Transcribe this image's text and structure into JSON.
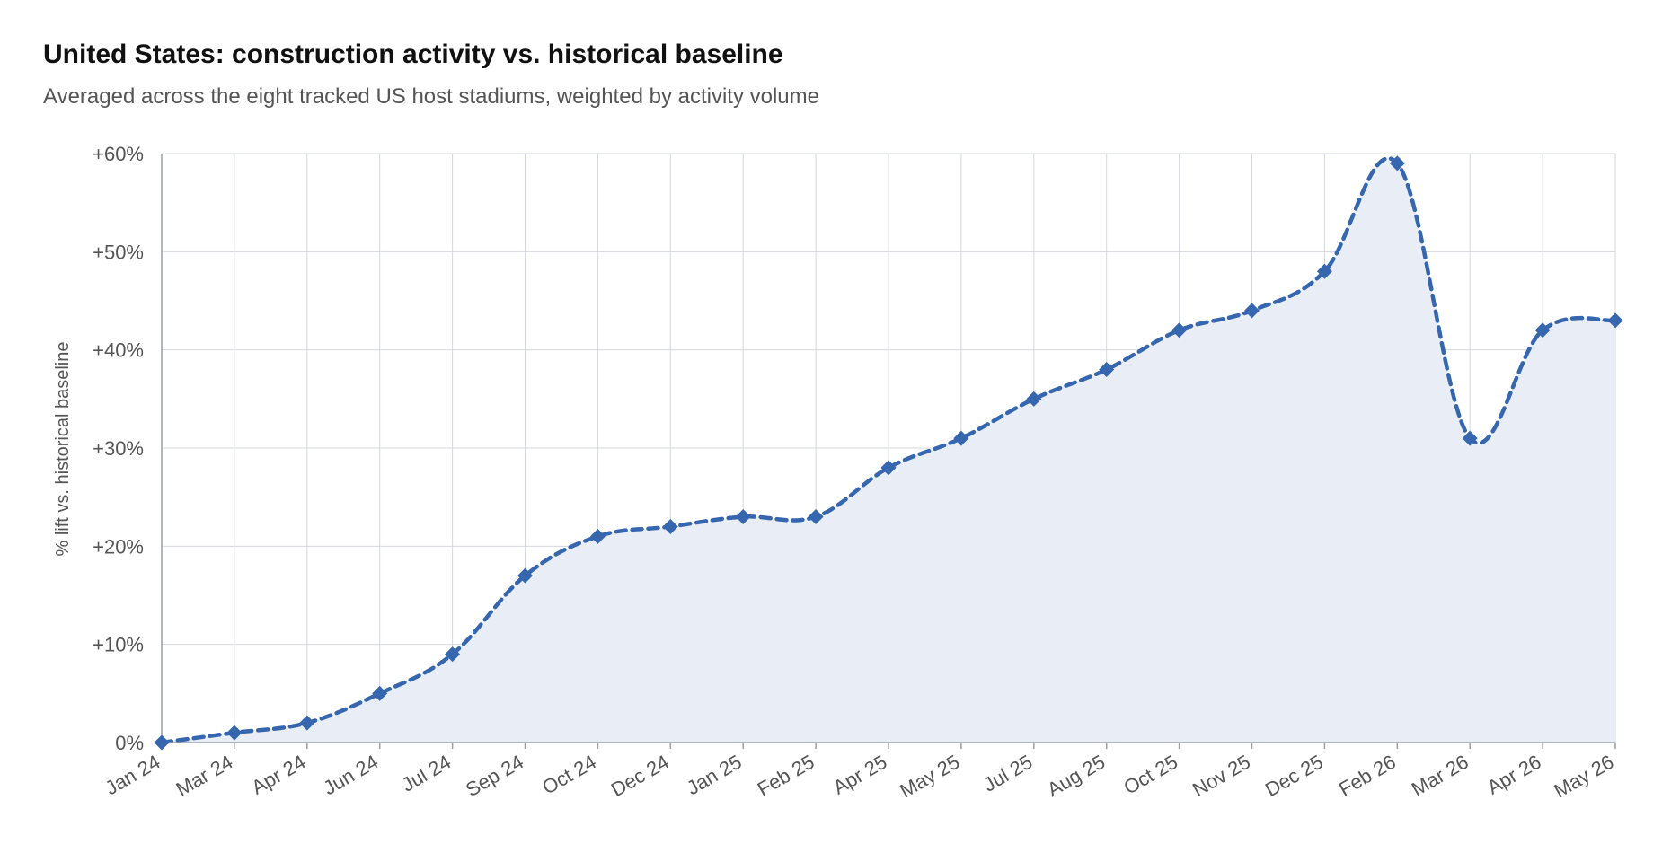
{
  "colors": {
    "line": "#3566ae",
    "area": "#e8edf6",
    "grid": "#d4d7dd",
    "axis": "#9aa0a8"
  },
  "chart_data": {
    "type": "area",
    "title": "United States: construction activity vs. historical baseline",
    "subtitle": "Averaged across the eight tracked US host stadiums, weighted by activity volume",
    "xlabel": "",
    "ylabel": "% lift vs. historical baseline",
    "ylim": [
      0,
      60
    ],
    "yticks": [
      0,
      10,
      20,
      30,
      40,
      50,
      60
    ],
    "ytick_labels": [
      "0%",
      "+10%",
      "+20%",
      "+30%",
      "+40%",
      "+50%",
      "+60%"
    ],
    "grid": true,
    "line_style": "dashed",
    "marker": "diamond",
    "categories": [
      "Jan 24",
      "Mar 24",
      "Apr 24",
      "Jun 24",
      "Jul 24",
      "Sep 24",
      "Oct 24",
      "Dec 24",
      "Jan 25",
      "Feb 25",
      "Apr 25",
      "May 25",
      "Jul 25",
      "Aug 25",
      "Oct 25",
      "Nov 25",
      "Dec 25",
      "Feb 26",
      "Mar 26",
      "Apr 26",
      "May 26"
    ],
    "series": [
      {
        "values": [
          0,
          1,
          2,
          5,
          9,
          17,
          21,
          22,
          23,
          23,
          28,
          31,
          35,
          38,
          42,
          44,
          48,
          59,
          31,
          42,
          43
        ]
      }
    ]
  }
}
